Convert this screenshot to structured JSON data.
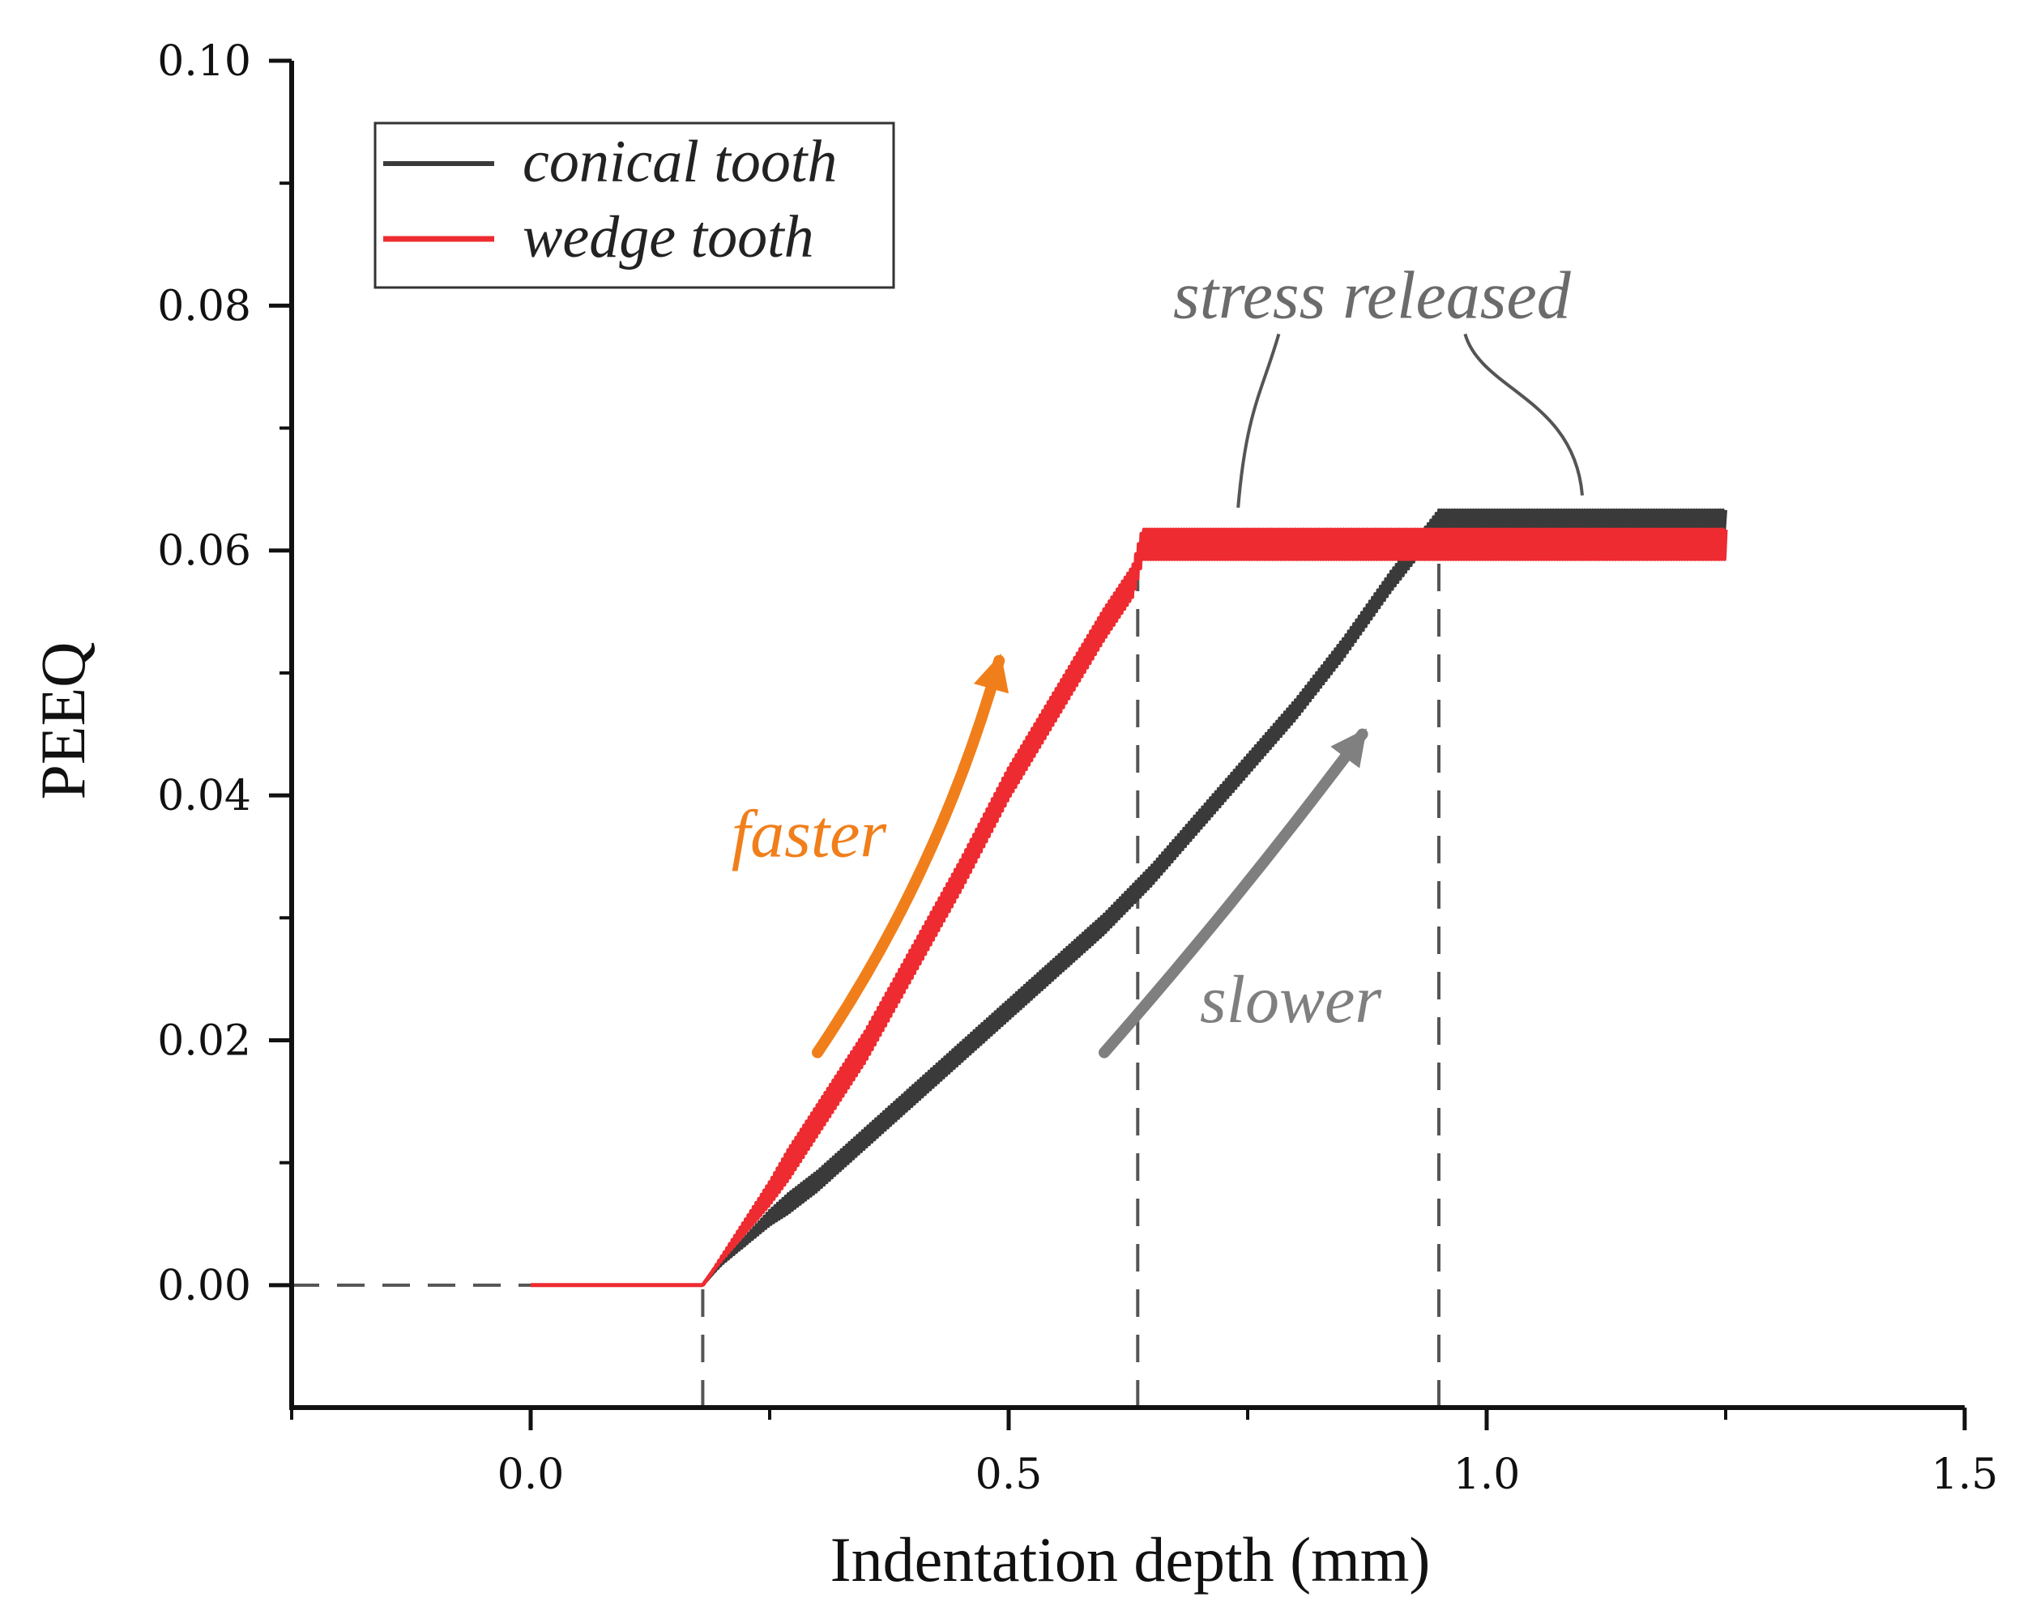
{
  "chart_data": {
    "type": "line",
    "title": "",
    "xlabel": "Indentation depth (mm)",
    "ylabel": "PEEQ",
    "xlim": [
      -0.25,
      1.5
    ],
    "ylim": [
      -0.01,
      0.1
    ],
    "x_ticks": [
      0.0,
      0.5,
      1.0,
      1.5
    ],
    "x_tick_labels": [
      "0.0",
      "0.5",
      "1.0",
      "1.5"
    ],
    "y_ticks": [
      0.0,
      0.02,
      0.04,
      0.06,
      0.08,
      0.1
    ],
    "y_tick_labels": [
      "0.00",
      "0.02",
      "0.04",
      "0.06",
      "0.08",
      "0.10"
    ],
    "grid": false,
    "legend_position": "top-left",
    "series": [
      {
        "name": "conical tooth",
        "color": "#3a3a3a",
        "x": [
          0.0,
          0.18,
          0.2,
          0.25,
          0.3,
          0.35,
          0.4,
          0.45,
          0.5,
          0.55,
          0.6,
          0.65,
          0.7,
          0.75,
          0.8,
          0.85,
          0.9,
          0.95,
          1.0,
          1.05,
          1.1,
          1.15,
          1.2,
          1.25
        ],
        "values": [
          0.0,
          0.0,
          0.0018,
          0.0055,
          0.0085,
          0.012,
          0.0155,
          0.019,
          0.0225,
          0.026,
          0.0295,
          0.0335,
          0.038,
          0.0425,
          0.047,
          0.052,
          0.0575,
          0.0625,
          0.0625,
          0.0625,
          0.0625,
          0.0625,
          0.0625,
          0.0625
        ],
        "oscillation_amplitude": 0.0008
      },
      {
        "name": "wedge tooth",
        "color": "#ee2b30",
        "x": [
          0.0,
          0.18,
          0.2,
          0.25,
          0.3,
          0.35,
          0.4,
          0.45,
          0.5,
          0.55,
          0.6,
          0.63,
          0.64,
          0.7,
          0.8,
          0.9,
          1.0,
          1.1,
          1.2,
          1.25
        ],
        "values": [
          0.0,
          0.0,
          0.0022,
          0.0075,
          0.0135,
          0.0195,
          0.0265,
          0.0335,
          0.041,
          0.0475,
          0.054,
          0.0575,
          0.0605,
          0.0605,
          0.0605,
          0.0605,
          0.0605,
          0.0605,
          0.0605,
          0.0605
        ],
        "oscillation_amplitude": 0.0012
      }
    ],
    "reference_lines": [
      {
        "orientation": "horizontal",
        "y": 0.0,
        "from_x": -0.25,
        "to_x": 0.0,
        "style": "dashed"
      },
      {
        "orientation": "vertical",
        "x": 0.18,
        "from_y": -0.01,
        "to_y": 0.0,
        "style": "dashed"
      },
      {
        "orientation": "vertical",
        "x": 0.635,
        "from_y": -0.01,
        "to_y": 0.06,
        "style": "dashed"
      },
      {
        "orientation": "vertical",
        "x": 0.95,
        "from_y": -0.01,
        "to_y": 0.062,
        "style": "dashed"
      }
    ],
    "annotations": [
      {
        "name": "faster",
        "text": "faster",
        "color": "#f07f1b",
        "x": 0.21,
        "y": 0.035,
        "arrow_from": [
          0.3,
          0.019
        ],
        "arrow_to": [
          0.49,
          0.051
        ]
      },
      {
        "name": "slower",
        "text": "slower",
        "color": "#7f7f7f",
        "x": 0.7,
        "y": 0.0215,
        "arrow_from": [
          0.6,
          0.019
        ],
        "arrow_to": [
          0.87,
          0.045
        ]
      },
      {
        "name": "stress-released",
        "text": "stress released",
        "color": "#6b6b6b",
        "x": 0.88,
        "y": 0.079,
        "pointers": [
          [
            0.74,
            0.0635
          ],
          [
            1.1,
            0.0645
          ]
        ]
      }
    ]
  }
}
